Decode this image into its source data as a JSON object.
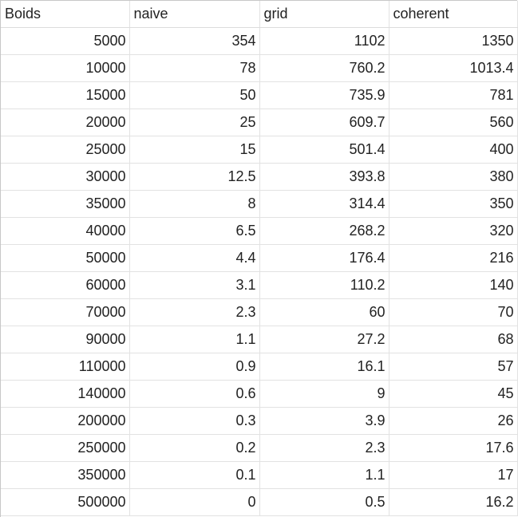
{
  "sheet": {
    "headers": [
      "Boids",
      "naive",
      "grid",
      "coherent"
    ],
    "rows": [
      [
        "5000",
        "354",
        "1102",
        "1350"
      ],
      [
        "10000",
        "78",
        "760.2",
        "1013.4"
      ],
      [
        "15000",
        "50",
        "735.9",
        "781"
      ],
      [
        "20000",
        "25",
        "609.7",
        "560"
      ],
      [
        "25000",
        "15",
        "501.4",
        "400"
      ],
      [
        "30000",
        "12.5",
        "393.8",
        "380"
      ],
      [
        "35000",
        "8",
        "314.4",
        "350"
      ],
      [
        "40000",
        "6.5",
        "268.2",
        "320"
      ],
      [
        "50000",
        "4.4",
        "176.4",
        "216"
      ],
      [
        "60000",
        "3.1",
        "110.2",
        "140"
      ],
      [
        "70000",
        "2.3",
        "60",
        "70"
      ],
      [
        "90000",
        "1.1",
        "27.2",
        "68"
      ],
      [
        "110000",
        "0.9",
        "16.1",
        "57"
      ],
      [
        "140000",
        "0.6",
        "9",
        "45"
      ],
      [
        "200000",
        "0.3",
        "3.9",
        "26"
      ],
      [
        "250000",
        "0.2",
        "2.3",
        "17.6"
      ],
      [
        "350000",
        "0.1",
        "1.1",
        "17"
      ],
      [
        "500000",
        "0",
        "0.5",
        "16.2"
      ]
    ]
  }
}
